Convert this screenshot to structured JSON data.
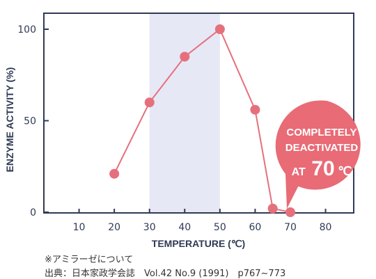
{
  "chart_data": {
    "type": "line",
    "xlabel": "TEMPERATURE (℃)",
    "ylabel": "ENZYME ACTIVITY (%)",
    "xlim": [
      0,
      88
    ],
    "ylim": [
      0,
      100
    ],
    "x_ticks": [
      "10",
      "20",
      "30",
      "40",
      "50",
      "60",
      "70",
      "80"
    ],
    "y_ticks": [
      "0",
      "50",
      "100"
    ],
    "highlight_band": {
      "x_from": 30,
      "x_to": 50
    },
    "grid": false,
    "series": [
      {
        "x": [
          20,
          30,
          40,
          50,
          60,
          65,
          70
        ],
        "y": [
          21,
          60,
          85,
          100,
          56,
          2,
          0
        ]
      }
    ],
    "annotation": {
      "lines": [
        "COMPLETELY",
        "DEACTIVATED"
      ],
      "prefix": "AT",
      "value": "70",
      "unit": "℃"
    }
  },
  "colors": {
    "line": "#e5707c",
    "marker": "#e5707c",
    "band": "#e6e8f6",
    "axis": "#2f3a55",
    "callout": "#e86b76"
  },
  "notes": {
    "line1": "※アミラーゼについて",
    "line2": "出典：日本家政学会誌　Vol.42 No.9 (1991)　p767~773"
  }
}
